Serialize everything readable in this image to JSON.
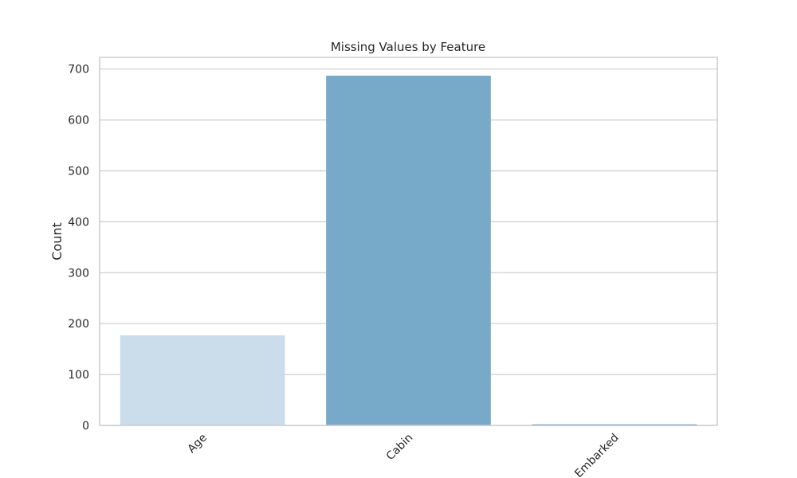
{
  "chart_data": {
    "type": "bar",
    "title": "Missing Values by Feature",
    "xlabel": "",
    "ylabel": "Count",
    "categories": [
      "Age",
      "Cabin",
      "Embarked"
    ],
    "values": [
      177,
      687,
      2
    ],
    "ylim": [
      0,
      723
    ],
    "yticks": [
      0,
      100,
      200,
      300,
      400,
      500,
      600,
      700
    ],
    "grid": "horizontal",
    "bar_colors": [
      "#cbdcea",
      "#77a9c8",
      "#2e7ebc"
    ],
    "grid_color": "#cccccc",
    "frame_color": "#cccccc"
  }
}
